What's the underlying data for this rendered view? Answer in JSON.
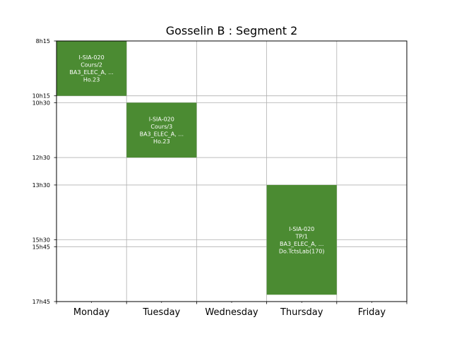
{
  "chart_data": {
    "type": "timetable",
    "title": "Gosselin B : Segment 2",
    "days": [
      "Monday",
      "Tuesday",
      "Wednesday",
      "Thursday",
      "Friday"
    ],
    "time_range": [
      "8h15",
      "17h45"
    ],
    "time_ticks": [
      "8h15",
      "10h15",
      "10h30",
      "12h30",
      "13h30",
      "15h30",
      "15h45",
      "17h45"
    ],
    "grid": true,
    "event_color": "#4b8b32",
    "events": [
      {
        "day": "Monday",
        "start": "8h15",
        "end": "10h15",
        "lines": [
          "I-SIA-020",
          "Cours/2",
          "BA3_ELEC_A, ...",
          "Ho.23"
        ]
      },
      {
        "day": "Tuesday",
        "start": "10h30",
        "end": "12h30",
        "lines": [
          "I-SIA-020",
          "Cours/3",
          "BA3_ELEC_A, ...",
          "Ho.23"
        ]
      },
      {
        "day": "Thursday",
        "start": "13h30",
        "end": "17h30",
        "lines": [
          "I-SIA-020",
          "TP/1",
          "BA3_ELEC_A, ...",
          "Do.TctsLab(170)"
        ]
      }
    ]
  }
}
